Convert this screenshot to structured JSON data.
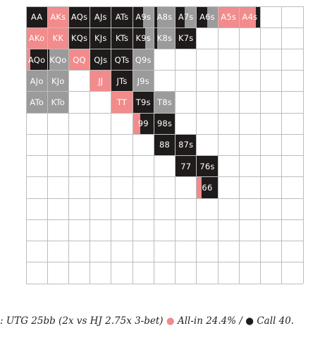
{
  "colors": {
    "allin": "#f28b8b",
    "call": "#1f1b1b",
    "fold": "#9b9b9b",
    "empty": "#ffffff",
    "grid": "#bdbdbd"
  },
  "caption": {
    "prefix": ": UTG 25bb (2x vs HJ 2.75x 3-bet) ",
    "allin": "All-in 24.4%",
    "sep": " / ",
    "call": "Call 40.",
    "dot": "●"
  },
  "chart_data": {
    "type": "heatmap",
    "rows": 13,
    "cols": 13,
    "cells": [
      {
        "r": 0,
        "c": 0,
        "label": "AA",
        "allin": 0,
        "call": 1,
        "fold": 0
      },
      {
        "r": 0,
        "c": 1,
        "label": "AKs",
        "allin": 1,
        "call": 0,
        "fold": 0
      },
      {
        "r": 0,
        "c": 2,
        "label": "AQs",
        "allin": 0,
        "call": 1,
        "fold": 0
      },
      {
        "r": 0,
        "c": 3,
        "label": "AJs",
        "allin": 0,
        "call": 1,
        "fold": 0
      },
      {
        "r": 0,
        "c": 4,
        "label": "ATs",
        "allin": 0,
        "call": 1,
        "fold": 0
      },
      {
        "r": 0,
        "c": 5,
        "label": "A9s",
        "allin": 0,
        "call": 0.5,
        "fold": 0.5
      },
      {
        "r": 0,
        "c": 6,
        "label": "A8s",
        "allin": 0,
        "call": 0.15,
        "fold": 0.85
      },
      {
        "r": 0,
        "c": 7,
        "label": "A7s",
        "allin": 0,
        "call": 0.45,
        "fold": 0.55
      },
      {
        "r": 0,
        "c": 8,
        "label": "A6s",
        "allin": 0,
        "call": 0.5,
        "fold": 0.5
      },
      {
        "r": 0,
        "c": 9,
        "label": "A5s",
        "allin": 1,
        "call": 0,
        "fold": 0
      },
      {
        "r": 0,
        "c": 10,
        "label": "A4s",
        "allin": 0.8,
        "call": 0.2,
        "fold": 0
      },
      {
        "r": 1,
        "c": 0,
        "label": "AKo",
        "allin": 1,
        "call": 0,
        "fold": 0
      },
      {
        "r": 1,
        "c": 1,
        "label": "KK",
        "allin": 1,
        "call": 0,
        "fold": 0
      },
      {
        "r": 1,
        "c": 2,
        "label": "KQs",
        "allin": 0,
        "call": 1,
        "fold": 0
      },
      {
        "r": 1,
        "c": 3,
        "label": "KJs",
        "allin": 0,
        "call": 1,
        "fold": 0
      },
      {
        "r": 1,
        "c": 4,
        "label": "KTs",
        "allin": 0,
        "call": 1,
        "fold": 0
      },
      {
        "r": 1,
        "c": 5,
        "label": "K9s",
        "allin": 0,
        "call": 0.6,
        "fold": 0.4
      },
      {
        "r": 1,
        "c": 6,
        "label": "K8s",
        "allin": 0,
        "call": 0.15,
        "fold": 0.85
      },
      {
        "r": 1,
        "c": 7,
        "label": "K7s",
        "allin": 0,
        "call": 1,
        "fold": 0
      },
      {
        "r": 2,
        "c": 0,
        "label": "AQo",
        "allin": 0.2,
        "call": 0.8,
        "fold": 0
      },
      {
        "r": 2,
        "c": 1,
        "label": "KQo",
        "allin": 0,
        "call": 0.1,
        "fold": 0.9
      },
      {
        "r": 2,
        "c": 2,
        "label": "QQ",
        "allin": 1,
        "call": 0,
        "fold": 0
      },
      {
        "r": 2,
        "c": 3,
        "label": "QJs",
        "allin": 0,
        "call": 1,
        "fold": 0
      },
      {
        "r": 2,
        "c": 4,
        "label": "QTs",
        "allin": 0,
        "call": 1,
        "fold": 0
      },
      {
        "r": 2,
        "c": 5,
        "label": "Q9s",
        "allin": 0,
        "call": 0,
        "fold": 1
      },
      {
        "r": 3,
        "c": 0,
        "label": "AJo",
        "allin": 0,
        "call": 0,
        "fold": 1
      },
      {
        "r": 3,
        "c": 1,
        "label": "KJo",
        "allin": 0,
        "call": 0,
        "fold": 1
      },
      {
        "r": 3,
        "c": 3,
        "label": "JJ",
        "allin": 1,
        "call": 0,
        "fold": 0
      },
      {
        "r": 3,
        "c": 4,
        "label": "JTs",
        "allin": 0,
        "call": 1,
        "fold": 0
      },
      {
        "r": 3,
        "c": 5,
        "label": "J9s",
        "allin": 0,
        "call": 0,
        "fold": 1
      },
      {
        "r": 4,
        "c": 0,
        "label": "ATo",
        "allin": 0,
        "call": 0,
        "fold": 1
      },
      {
        "r": 4,
        "c": 1,
        "label": "KTo",
        "allin": 0,
        "call": 0,
        "fold": 1
      },
      {
        "r": 4,
        "c": 4,
        "label": "TT",
        "allin": 1,
        "call": 0,
        "fold": 0
      },
      {
        "r": 4,
        "c": 5,
        "label": "T9s",
        "allin": 0,
        "call": 1,
        "fold": 0
      },
      {
        "r": 4,
        "c": 6,
        "label": "T8s",
        "allin": 0,
        "call": 0,
        "fold": 1
      },
      {
        "r": 5,
        "c": 5,
        "label": "99",
        "allin": 0.35,
        "call": 0.65,
        "fold": 0
      },
      {
        "r": 5,
        "c": 6,
        "label": "98s",
        "allin": 0,
        "call": 1,
        "fold": 0
      },
      {
        "r": 6,
        "c": 6,
        "label": "88",
        "allin": 0,
        "call": 1,
        "fold": 0
      },
      {
        "r": 6,
        "c": 7,
        "label": "87s",
        "allin": 0,
        "call": 1,
        "fold": 0
      },
      {
        "r": 7,
        "c": 7,
        "label": "77",
        "allin": 0,
        "call": 1,
        "fold": 0
      },
      {
        "r": 7,
        "c": 8,
        "label": "76s",
        "allin": 0,
        "call": 1,
        "fold": 0
      },
      {
        "r": 8,
        "c": 8,
        "label": "66",
        "allin": 0.25,
        "call": 0.75,
        "fold": 0
      }
    ]
  }
}
